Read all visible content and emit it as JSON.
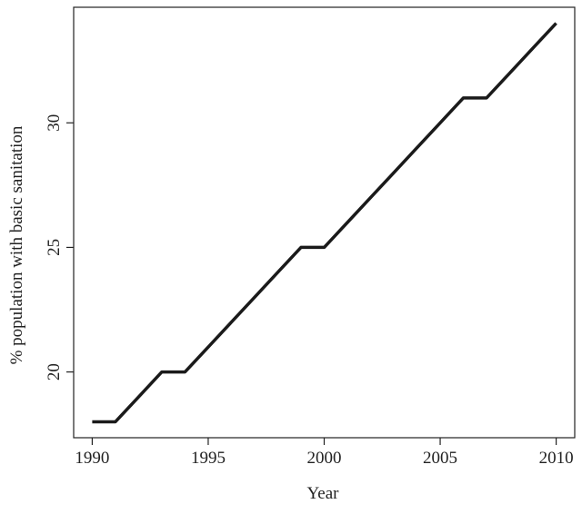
{
  "chart_data": {
    "type": "line",
    "x_label": "Year",
    "y_label": "% population with basic sanitation",
    "x": [
      1990,
      1991,
      1992,
      1993,
      1994,
      1995,
      1996,
      1997,
      1998,
      1999,
      2000,
      2001,
      2002,
      2003,
      2004,
      2005,
      2006,
      2007,
      2008,
      2009,
      2010
    ],
    "series": [
      {
        "color": "#1a1a1a",
        "values": [
          18,
          18,
          19,
          20,
          20,
          21,
          22,
          23,
          24,
          25,
          25,
          26,
          27,
          28,
          29,
          30,
          31,
          31,
          32,
          33,
          34
        ]
      }
    ],
    "xlim": [
      1989.2,
      2010.8
    ],
    "xticks": [
      1990,
      1995,
      2000,
      2005,
      2010
    ],
    "ylim": [
      17.36,
      34.64
    ],
    "yticks": [
      20,
      25,
      30
    ]
  }
}
